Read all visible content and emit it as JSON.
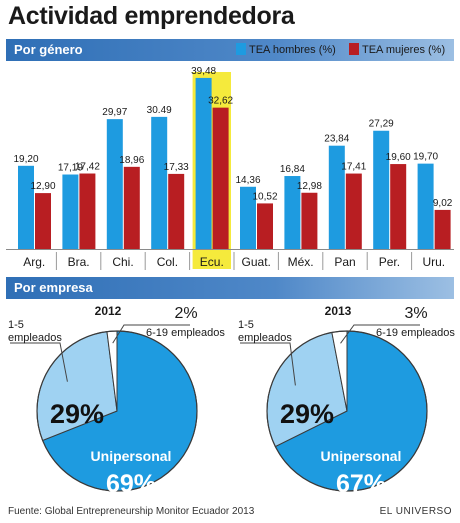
{
  "title": "Actividad emprendedora",
  "section_gender": "Por género",
  "section_company": "Por empresa",
  "chart_data": [
    {
      "type": "bar",
      "categories": [
        "Arg.",
        "Bra.",
        "Chi.",
        "Col.",
        "Ecu.",
        "Guat.",
        "Méx.",
        "Pan",
        "Per.",
        "Uru."
      ],
      "series": [
        {
          "name": "TEA hombres (%)",
          "values": [
            19.2,
            17.19,
            29.97,
            30.49,
            39.48,
            14.36,
            16.84,
            23.84,
            27.29,
            19.7
          ],
          "labels": [
            "19,20",
            "17,19",
            "29,97",
            "30.49",
            "39,48",
            "14,36",
            "16,84",
            "23,84",
            "27,29",
            "19,70"
          ]
        },
        {
          "name": "TEA mujeres (%)",
          "values": [
            12.9,
            17.42,
            18.96,
            17.33,
            32.62,
            10.52,
            12.98,
            17.41,
            19.6,
            9.02
          ],
          "labels": [
            "12,90",
            "17,42",
            "18,96",
            "17,33",
            "32,62",
            "10,52",
            "12,98",
            "17,41",
            "19,60",
            "9,02"
          ]
        }
      ],
      "highlight_category": "Ecu.",
      "ylim": [
        0,
        42
      ],
      "legend_position": "top-right",
      "colors": {
        "hombres": "#1e9be0",
        "mujeres": "#b81e22",
        "highlight": "#f5ea3c"
      }
    },
    {
      "type": "pie",
      "title": "2012",
      "slices": [
        {
          "label": "Unipersonal",
          "value": 69,
          "value_label": "69%"
        },
        {
          "label": "1-5 empleados",
          "value": 29,
          "value_label": "29%"
        },
        {
          "label": "6-19 empleados",
          "value": 2,
          "value_label": "2%"
        }
      ],
      "colors": [
        "#1e9be0",
        "#9fd2f2",
        "#ffffff"
      ]
    },
    {
      "type": "pie",
      "title": "2013",
      "slices": [
        {
          "label": "Unipersonal",
          "value": 67,
          "value_label": "67%"
        },
        {
          "label": "1-5 empleados",
          "value": 29,
          "value_label": "29%"
        },
        {
          "label": "6-19 empleados",
          "value": 3,
          "value_label": "3%"
        }
      ],
      "colors": [
        "#1e9be0",
        "#9fd2f2",
        "#ffffff"
      ]
    }
  ],
  "source": "Fuente: Global Entrepreneurship Monitor Ecuador 2013",
  "brand": "EL UNIVERSO"
}
